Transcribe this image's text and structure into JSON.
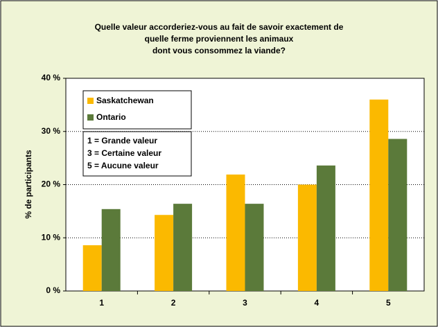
{
  "chart_data": {
    "type": "bar",
    "title": [
      "Quelle valeur accorderiez-vous au fait de savoir exactement de",
      "quelle ferme proviennent les animaux",
      "dont vous consommez la viande?"
    ],
    "ylabel": "% de participants",
    "categories": [
      "1",
      "2",
      "3",
      "4",
      "5"
    ],
    "series": [
      {
        "name": "Saskatchewan",
        "color": "#fbb900",
        "values": [
          8.6,
          14.3,
          21.9,
          20.0,
          36.0
        ]
      },
      {
        "name": "Ontario",
        "color": "#5b7a3a",
        "values": [
          15.4,
          16.4,
          16.4,
          23.6,
          28.6
        ]
      }
    ],
    "annotations": [
      "1 = Grande valeur",
      "3 = Certaine valeur",
      "5 = Aucune valeur"
    ],
    "ylim": [
      0,
      40
    ],
    "yticks": [
      {
        "value": 0,
        "label": "0 %"
      },
      {
        "value": 10,
        "label": "10 %"
      },
      {
        "value": 20,
        "label": "20 %"
      },
      {
        "value": 30,
        "label": "30 %"
      },
      {
        "value": 40,
        "label": "40 %"
      }
    ],
    "grid": true,
    "legend": "upper left"
  }
}
